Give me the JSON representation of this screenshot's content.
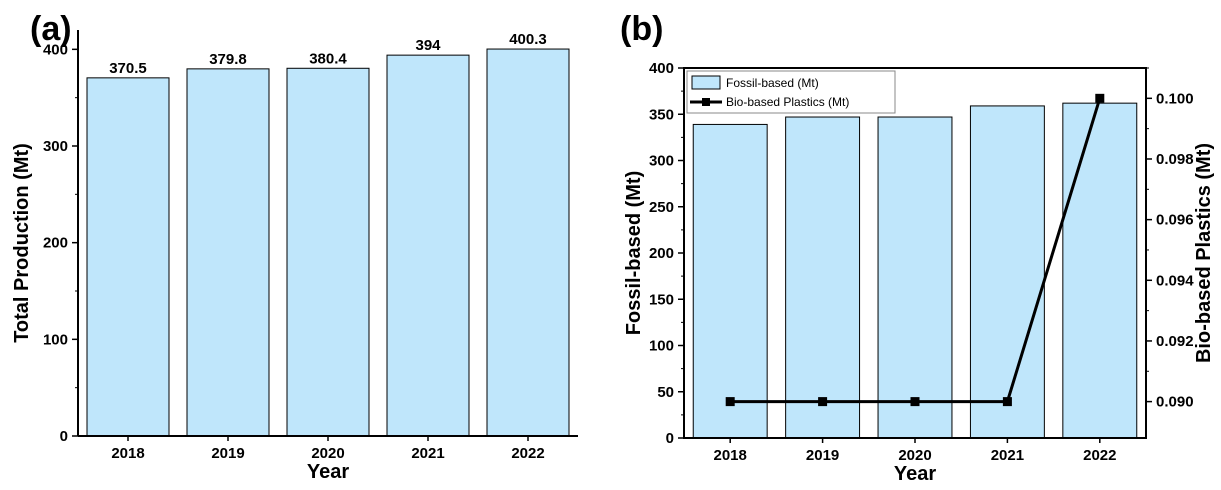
{
  "chart_data": [
    {
      "panel": "(a)",
      "type": "bar",
      "categories": [
        "2018",
        "2019",
        "2020",
        "2021",
        "2022"
      ],
      "values": [
        370.5,
        379.8,
        380.4,
        394,
        400.3
      ],
      "data_labels": [
        "370.5",
        "379.8",
        "380.4",
        "394",
        "400.3"
      ],
      "xlabel": "Year",
      "ylabel": "Total Production (Mt)",
      "ylim": [
        0,
        420
      ],
      "yticks": [
        0,
        100,
        200,
        300,
        400
      ],
      "bar_color": "#bfe6fb",
      "grid": false
    },
    {
      "panel": "(b)",
      "type": "bar",
      "categories": [
        "2018",
        "2019",
        "2020",
        "2021",
        "2022"
      ],
      "series": [
        {
          "name": "Fossil-based (Mt)",
          "type": "bar",
          "axis": "left",
          "values": [
            339,
            347,
            347,
            359,
            362
          ],
          "color": "#bfe6fb"
        },
        {
          "name": "Bio-based Plastics (Mt)",
          "type": "line",
          "axis": "right",
          "values": [
            0.09,
            0.09,
            0.09,
            0.09,
            0.1
          ],
          "color": "#000000"
        }
      ],
      "xlabel": "Year",
      "ylabel": "Fossil-based (Mt)",
      "ylabel_right": "Bio-based Plastics (Mt)",
      "ylim": [
        0,
        400
      ],
      "yticks": [
        0,
        50,
        100,
        150,
        200,
        250,
        300,
        350,
        400
      ],
      "ylim_right": [
        0.0888,
        0.101
      ],
      "yticks_right": [
        "0.090",
        "0.092",
        "0.094",
        "0.096",
        "0.098",
        "0.100"
      ],
      "legend": "top-left",
      "grid": false
    }
  ]
}
